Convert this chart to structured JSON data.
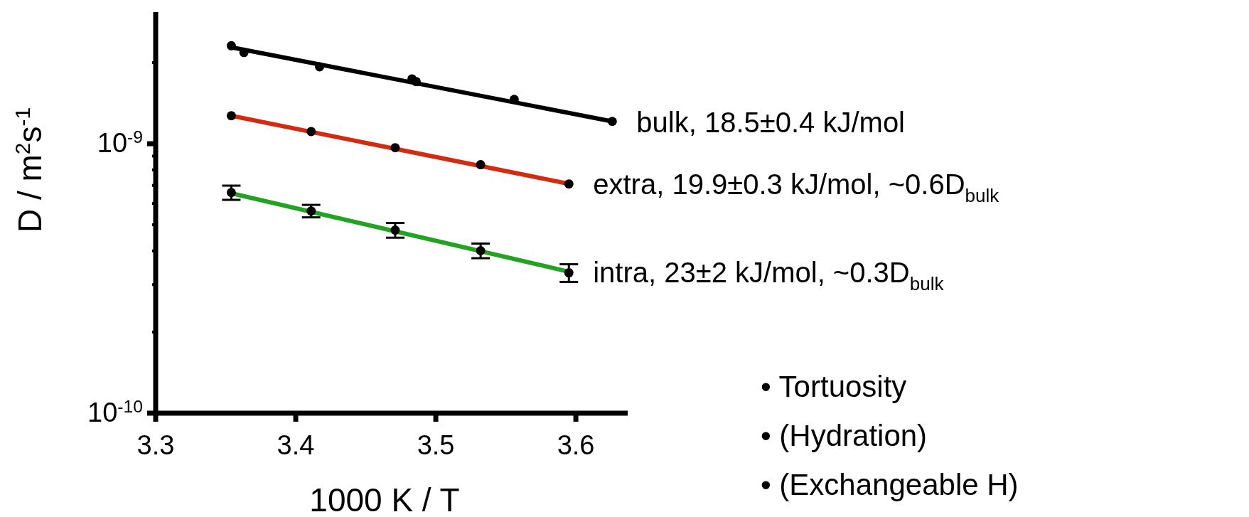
{
  "chart_data": {
    "type": "scatter",
    "xlabel": "1000 K / T",
    "ylabel": "D / m$^{2}$s$^{-1}$",
    "log": "y",
    "marker": "circle",
    "line_style": "solid",
    "xlim": [
      3.3,
      3.637
    ],
    "xticks": [
      3.3,
      3.4,
      3.5,
      3.6
    ],
    "ylim": [
      1e-10,
      3.08e-09
    ],
    "yticks": [
      {
        "value": 1e-10,
        "label": "10$^{-10}$"
      },
      {
        "value": 2e-10,
        "label": null
      },
      {
        "value": 3e-10,
        "label": null
      },
      {
        "value": 4e-10,
        "label": null
      },
      {
        "value": 5e-10,
        "label": null
      },
      {
        "value": 6e-10,
        "label": null
      },
      {
        "value": 7e-10,
        "label": null
      },
      {
        "value": 8e-10,
        "label": null
      },
      {
        "value": 9e-10,
        "label": null
      },
      {
        "value": 1e-09,
        "label": "10$^{-9}$"
      },
      {
        "value": 2e-09,
        "label": null
      }
    ],
    "series": [
      {
        "type": "line",
        "name": "bulk, 18.5±0.4 kJ/mol",
        "color": "#000000",
        "x": [
          3.354,
          3.626
        ],
        "values": [
          2.28e-09,
          1.21e-09
        ],
        "marker": "none"
      },
      {
        "type": "line",
        "name": "extra, 19.9±0.3 kJ/mol, ~0.6D$_{bulk}$",
        "color": "#d42a10",
        "x": [
          3.354,
          3.595
        ],
        "values": [
          1.27e-09,
          7.1e-10
        ],
        "marker": "none"
      },
      {
        "type": "line",
        "name": "intra, 23±2 kJ/mol, ~0.3D$_{bulk}$",
        "color": "#22a322",
        "x": [
          3.354,
          3.595
        ],
        "values": [
          6.55e-10,
          3.35e-10
        ],
        "marker": "none"
      },
      {
        "color": "#000000",
        "x": [
          3.354,
          3.363,
          3.417,
          3.483,
          3.486,
          3.556,
          3.626
        ],
        "values": [
          2.31e-09,
          2.18e-09,
          1.93e-09,
          1.74e-09,
          1.7e-09,
          1.46e-09,
          1.21e-09
        ]
      },
      {
        "color": "#000000",
        "x": [
          3.354,
          3.411,
          3.471,
          3.532,
          3.595
        ],
        "values": [
          1.27e-09,
          1.11e-09,
          9.67e-10,
          8.36e-10,
          7.09e-10
        ]
      },
      {
        "color": "#000000",
        "x": [
          3.354,
          3.411,
          3.471,
          3.532,
          3.595
        ],
        "values": [
          6.59e-10,
          5.63e-10,
          4.78e-10,
          4.01e-10,
          3.32e-10
        ],
        "errors": [
          4e-11,
          3e-11,
          3e-11,
          2.5e-11,
          2.5e-11
        ]
      }
    ],
    "annotations": [
      "• Tortuosity",
      "• (Hydration)",
      "• (Exchangeable H)"
    ]
  }
}
